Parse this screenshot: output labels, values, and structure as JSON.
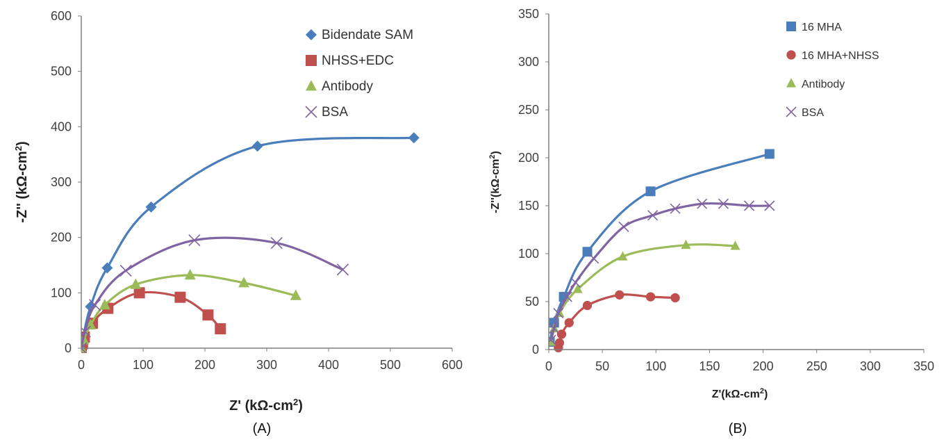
{
  "chart_data": [
    {
      "type": "scatter",
      "panel_label": "(A)",
      "xlabel": "Z' (kΩ-cm",
      "xlabel_sup": "2",
      "xlabel_end": ")",
      "ylabel": "-Z'' (kΩ-cm",
      "ylabel_sup": "2",
      "ylabel_end": ")",
      "xlim": [
        0,
        600
      ],
      "ylim": [
        0,
        600
      ],
      "xticks": [
        0,
        100,
        200,
        300,
        400,
        500,
        600
      ],
      "yticks": [
        0,
        100,
        200,
        300,
        400,
        500,
        600
      ],
      "grid": false,
      "legend_position": "top-right",
      "series": [
        {
          "name": "Bidendate SAM",
          "marker": "diamond",
          "color": "#4a7ebb",
          "x": [
            0,
            3,
            15,
            42,
            113,
            285,
            538
          ],
          "y": [
            0,
            20,
            75,
            145,
            255,
            365,
            380
          ]
        },
        {
          "name": "NHSS+EDC",
          "marker": "square",
          "color": "#c0504d",
          "x": [
            0,
            2,
            5,
            18,
            43,
            94,
            160,
            205,
            225
          ],
          "y": [
            0,
            8,
            20,
            45,
            72,
            100,
            92,
            60,
            35
          ]
        },
        {
          "name": "Antibody",
          "marker": "triangle",
          "color": "#9bbb59",
          "x": [
            0,
            4,
            15,
            38,
            88,
            176,
            263,
            347
          ],
          "y": [
            0,
            15,
            42,
            78,
            115,
            132,
            118,
            95
          ]
        },
        {
          "name": "BSA",
          "marker": "x",
          "color": "#8064a2",
          "x": [
            0,
            6,
            22,
            72,
            183,
            316,
            423
          ],
          "y": [
            0,
            30,
            78,
            140,
            195,
            190,
            142
          ]
        }
      ]
    },
    {
      "type": "scatter",
      "panel_label": "(B)",
      "xlabel": "Z'(kΩ-cm",
      "xlabel_sup": "2",
      "xlabel_end": ")",
      "ylabel": "-Z''(kΩ-cm",
      "ylabel_sup": "2",
      "ylabel_end": ")",
      "xlim": [
        0,
        350
      ],
      "ylim": [
        0,
        350
      ],
      "xticks": [
        0,
        50,
        100,
        150,
        200,
        250,
        300,
        350
      ],
      "yticks": [
        0,
        50,
        100,
        150,
        200,
        250,
        300,
        350
      ],
      "grid": false,
      "legend_position": "top-left",
      "series": [
        {
          "name": "16 MHA",
          "marker": "square",
          "color": "#4a7ebb",
          "x": [
            1,
            5,
            14,
            36,
            95,
            206
          ],
          "y": [
            8,
            28,
            55,
            102,
            165,
            204
          ]
        },
        {
          "name": "16 MHA+NHSS",
          "marker": "circle",
          "color": "#c0504d",
          "x": [
            9,
            10,
            12,
            19,
            36,
            66,
            95,
            118
          ],
          "y": [
            2,
            7,
            16,
            28,
            46,
            57,
            55,
            54
          ]
        },
        {
          "name": "Antibody",
          "marker": "triangle",
          "color": "#9bbb59",
          "x": [
            2,
            5,
            10,
            27,
            69,
            128,
            174
          ],
          "y": [
            8,
            22,
            38,
            63,
            97,
            109,
            108
          ]
        },
        {
          "name": "BSA",
          "marker": "x",
          "color": "#8064a2",
          "x": [
            2,
            5,
            9,
            17,
            25,
            42,
            70,
            97,
            118,
            143,
            163,
            187,
            206
          ],
          "y": [
            10,
            22,
            38,
            55,
            70,
            95,
            128,
            140,
            147,
            152,
            152,
            150,
            150
          ]
        }
      ]
    }
  ]
}
